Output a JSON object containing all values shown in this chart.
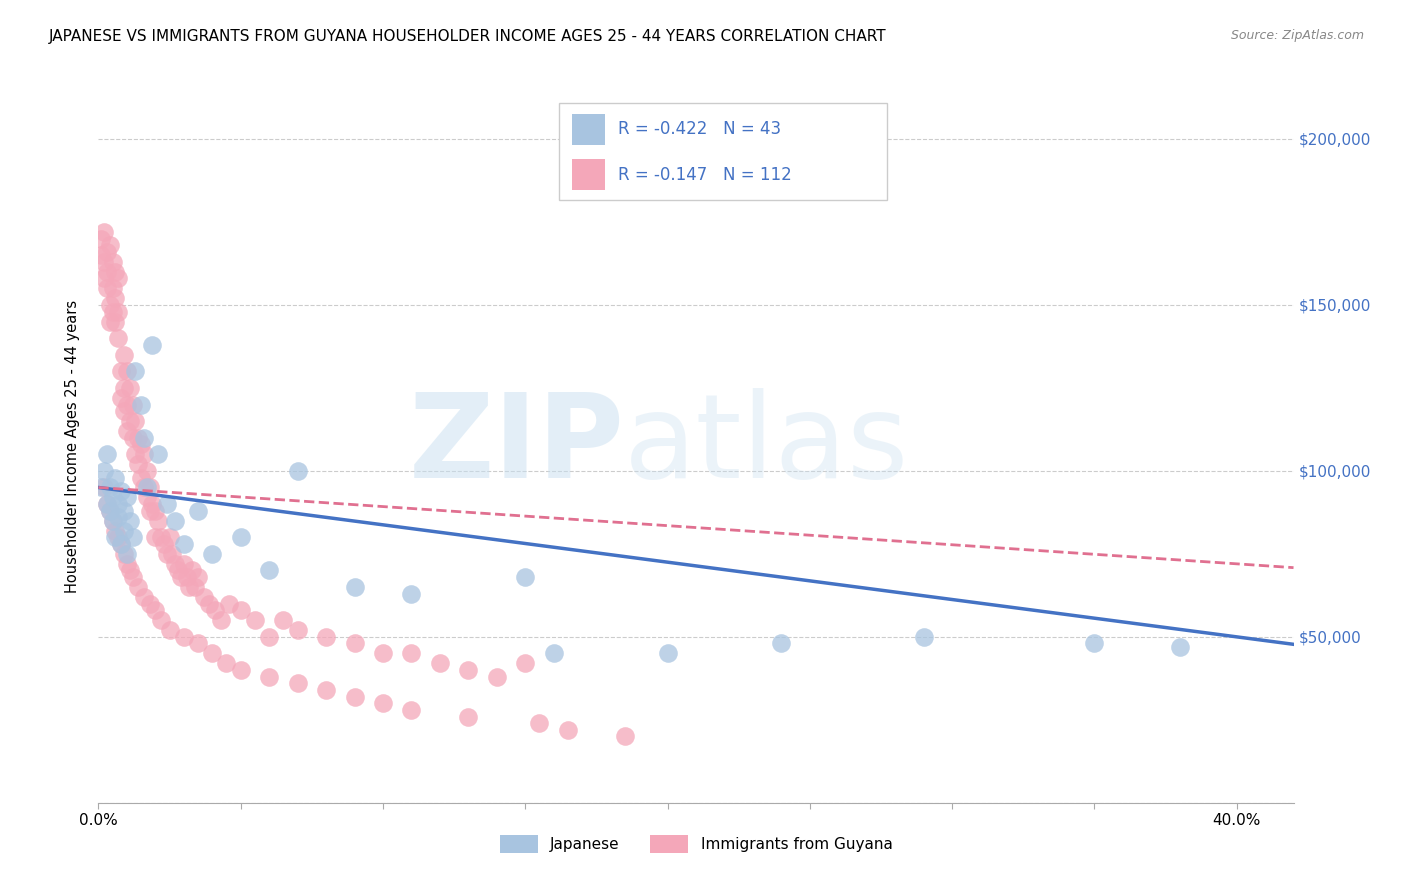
{
  "title": "JAPANESE VS IMMIGRANTS FROM GUYANA HOUSEHOLDER INCOME AGES 25 - 44 YEARS CORRELATION CHART",
  "source": "Source: ZipAtlas.com",
  "ylabel": "Householder Income Ages 25 - 44 years",
  "xlim": [
    0.0,
    0.42
  ],
  "ylim": [
    0,
    215000
  ],
  "yticks": [
    0,
    50000,
    100000,
    150000,
    200000
  ],
  "xtick_positions": [
    0.0,
    0.05,
    0.1,
    0.15,
    0.2,
    0.25,
    0.3,
    0.35,
    0.4
  ],
  "xtick_labels": [
    "0.0%",
    "",
    "",
    "",
    "",
    "",
    "",
    "",
    "40.0%"
  ],
  "R_japanese": -0.422,
  "N_japanese": 43,
  "R_guyana": -0.147,
  "N_guyana": 112,
  "color_japanese": "#a8c4e0",
  "color_guyana": "#f4a7b9",
  "line_color_japanese": "#4472c4",
  "line_color_guyana": "#e07090",
  "ytick_labels_right": [
    "",
    "$50,000",
    "$100,000",
    "$150,000",
    "$200,000"
  ],
  "watermark_zip": "ZIP",
  "watermark_atlas": "atlas",
  "japanese_x": [
    0.001,
    0.002,
    0.003,
    0.003,
    0.004,
    0.004,
    0.005,
    0.005,
    0.006,
    0.006,
    0.007,
    0.007,
    0.008,
    0.008,
    0.009,
    0.009,
    0.01,
    0.01,
    0.011,
    0.012,
    0.013,
    0.015,
    0.016,
    0.017,
    0.019,
    0.021,
    0.024,
    0.027,
    0.03,
    0.035,
    0.04,
    0.05,
    0.06,
    0.07,
    0.09,
    0.11,
    0.15,
    0.16,
    0.2,
    0.24,
    0.29,
    0.35,
    0.38
  ],
  "japanese_y": [
    95000,
    100000,
    90000,
    105000,
    88000,
    95000,
    92000,
    85000,
    98000,
    80000,
    90000,
    86000,
    78000,
    94000,
    82000,
    88000,
    75000,
    92000,
    85000,
    80000,
    130000,
    120000,
    110000,
    95000,
    138000,
    105000,
    90000,
    85000,
    78000,
    88000,
    75000,
    80000,
    70000,
    100000,
    65000,
    63000,
    68000,
    45000,
    45000,
    48000,
    50000,
    48000,
    47000
  ],
  "guyana_x": [
    0.001,
    0.001,
    0.002,
    0.002,
    0.002,
    0.003,
    0.003,
    0.003,
    0.004,
    0.004,
    0.004,
    0.005,
    0.005,
    0.005,
    0.006,
    0.006,
    0.006,
    0.007,
    0.007,
    0.007,
    0.008,
    0.008,
    0.009,
    0.009,
    0.009,
    0.01,
    0.01,
    0.01,
    0.011,
    0.011,
    0.012,
    0.012,
    0.013,
    0.013,
    0.014,
    0.014,
    0.015,
    0.015,
    0.016,
    0.016,
    0.017,
    0.017,
    0.018,
    0.018,
    0.019,
    0.02,
    0.02,
    0.021,
    0.022,
    0.023,
    0.024,
    0.025,
    0.026,
    0.027,
    0.028,
    0.029,
    0.03,
    0.031,
    0.032,
    0.033,
    0.034,
    0.035,
    0.037,
    0.039,
    0.041,
    0.043,
    0.046,
    0.05,
    0.055,
    0.06,
    0.065,
    0.07,
    0.08,
    0.09,
    0.1,
    0.11,
    0.12,
    0.13,
    0.14,
    0.15,
    0.002,
    0.003,
    0.004,
    0.005,
    0.006,
    0.007,
    0.008,
    0.009,
    0.01,
    0.011,
    0.012,
    0.014,
    0.016,
    0.018,
    0.02,
    0.022,
    0.025,
    0.03,
    0.035,
    0.04,
    0.045,
    0.05,
    0.06,
    0.07,
    0.08,
    0.09,
    0.1,
    0.11,
    0.13,
    0.155,
    0.165,
    0.185
  ],
  "guyana_y": [
    170000,
    165000,
    163000,
    158000,
    172000,
    166000,
    160000,
    155000,
    168000,
    150000,
    145000,
    163000,
    155000,
    148000,
    160000,
    152000,
    145000,
    158000,
    148000,
    140000,
    130000,
    122000,
    135000,
    125000,
    118000,
    130000,
    120000,
    112000,
    125000,
    115000,
    120000,
    110000,
    115000,
    105000,
    110000,
    102000,
    108000,
    98000,
    105000,
    95000,
    100000,
    92000,
    95000,
    88000,
    90000,
    88000,
    80000,
    85000,
    80000,
    78000,
    75000,
    80000,
    75000,
    72000,
    70000,
    68000,
    72000,
    68000,
    65000,
    70000,
    65000,
    68000,
    62000,
    60000,
    58000,
    55000,
    60000,
    58000,
    55000,
    50000,
    55000,
    52000,
    50000,
    48000,
    45000,
    45000,
    42000,
    40000,
    38000,
    42000,
    95000,
    90000,
    88000,
    85000,
    82000,
    80000,
    78000,
    75000,
    72000,
    70000,
    68000,
    65000,
    62000,
    60000,
    58000,
    55000,
    52000,
    50000,
    48000,
    45000,
    42000,
    40000,
    38000,
    36000,
    34000,
    32000,
    30000,
    28000,
    26000,
    24000,
    22000,
    20000
  ]
}
